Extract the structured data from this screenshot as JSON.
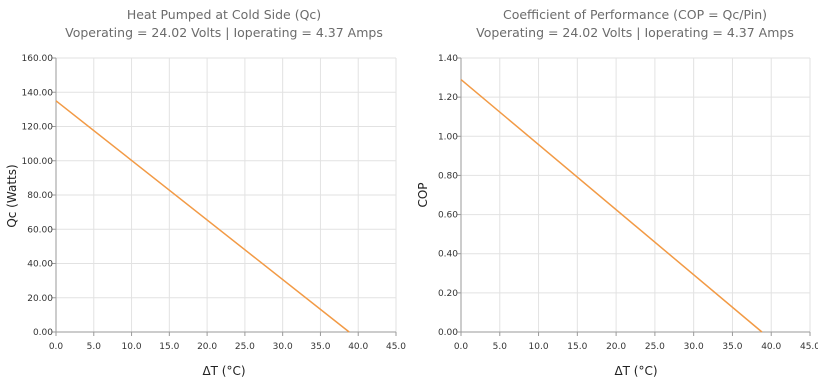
{
  "chart_data": [
    {
      "type": "line",
      "title": "Heat Pumped at Cold Side (Qc)",
      "subtitle": "Voperating = 24.02 Volts | Ioperating = 4.37 Amps",
      "xlabel": "ΔT (°C)",
      "ylabel": "Qc (Watts)",
      "xlim": [
        0,
        45
      ],
      "ylim": [
        0,
        160
      ],
      "xticks": [
        0,
        5,
        10,
        15,
        20,
        25,
        30,
        35,
        40,
        45
      ],
      "yticks": [
        0,
        20,
        40,
        60,
        80,
        100,
        120,
        140,
        160
      ],
      "xtick_labels": [
        "0.0",
        "5.0",
        "10.0",
        "15.0",
        "20.0",
        "25.0",
        "30.0",
        "35.0",
        "40.0",
        "45.0"
      ],
      "ytick_labels": [
        "0.00",
        "20.00",
        "40.00",
        "60.00",
        "80.00",
        "100.00",
        "120.00",
        "140.00",
        "160.00"
      ],
      "grid": true,
      "series": [
        {
          "color": "#f29a45",
          "x": [
            0,
            38.8
          ],
          "y": [
            135,
            0
          ]
        }
      ]
    },
    {
      "type": "line",
      "title": "Coefficient of Performance (COP = Qc/Pin)",
      "subtitle": "Voperating = 24.02 Volts | Ioperating = 4.37 Amps",
      "xlabel": "ΔT (°C)",
      "ylabel": "COP",
      "xlim": [
        0,
        45
      ],
      "ylim": [
        0,
        1.4
      ],
      "xticks": [
        0,
        5,
        10,
        15,
        20,
        25,
        30,
        35,
        40,
        45
      ],
      "yticks": [
        0,
        0.2,
        0.4,
        0.6,
        0.8,
        1.0,
        1.2,
        1.4
      ],
      "xtick_labels": [
        "0.0",
        "5.0",
        "10.0",
        "15.0",
        "20.0",
        "25.0",
        "30.0",
        "35.0",
        "40.0",
        "45.0"
      ],
      "ytick_labels": [
        "0.00",
        "0.20",
        "0.40",
        "0.60",
        "0.80",
        "1.00",
        "1.20",
        "1.40"
      ],
      "grid": true,
      "series": [
        {
          "color": "#f29a45",
          "x": [
            0,
            38.8
          ],
          "y": [
            1.29,
            0
          ]
        }
      ]
    }
  ]
}
